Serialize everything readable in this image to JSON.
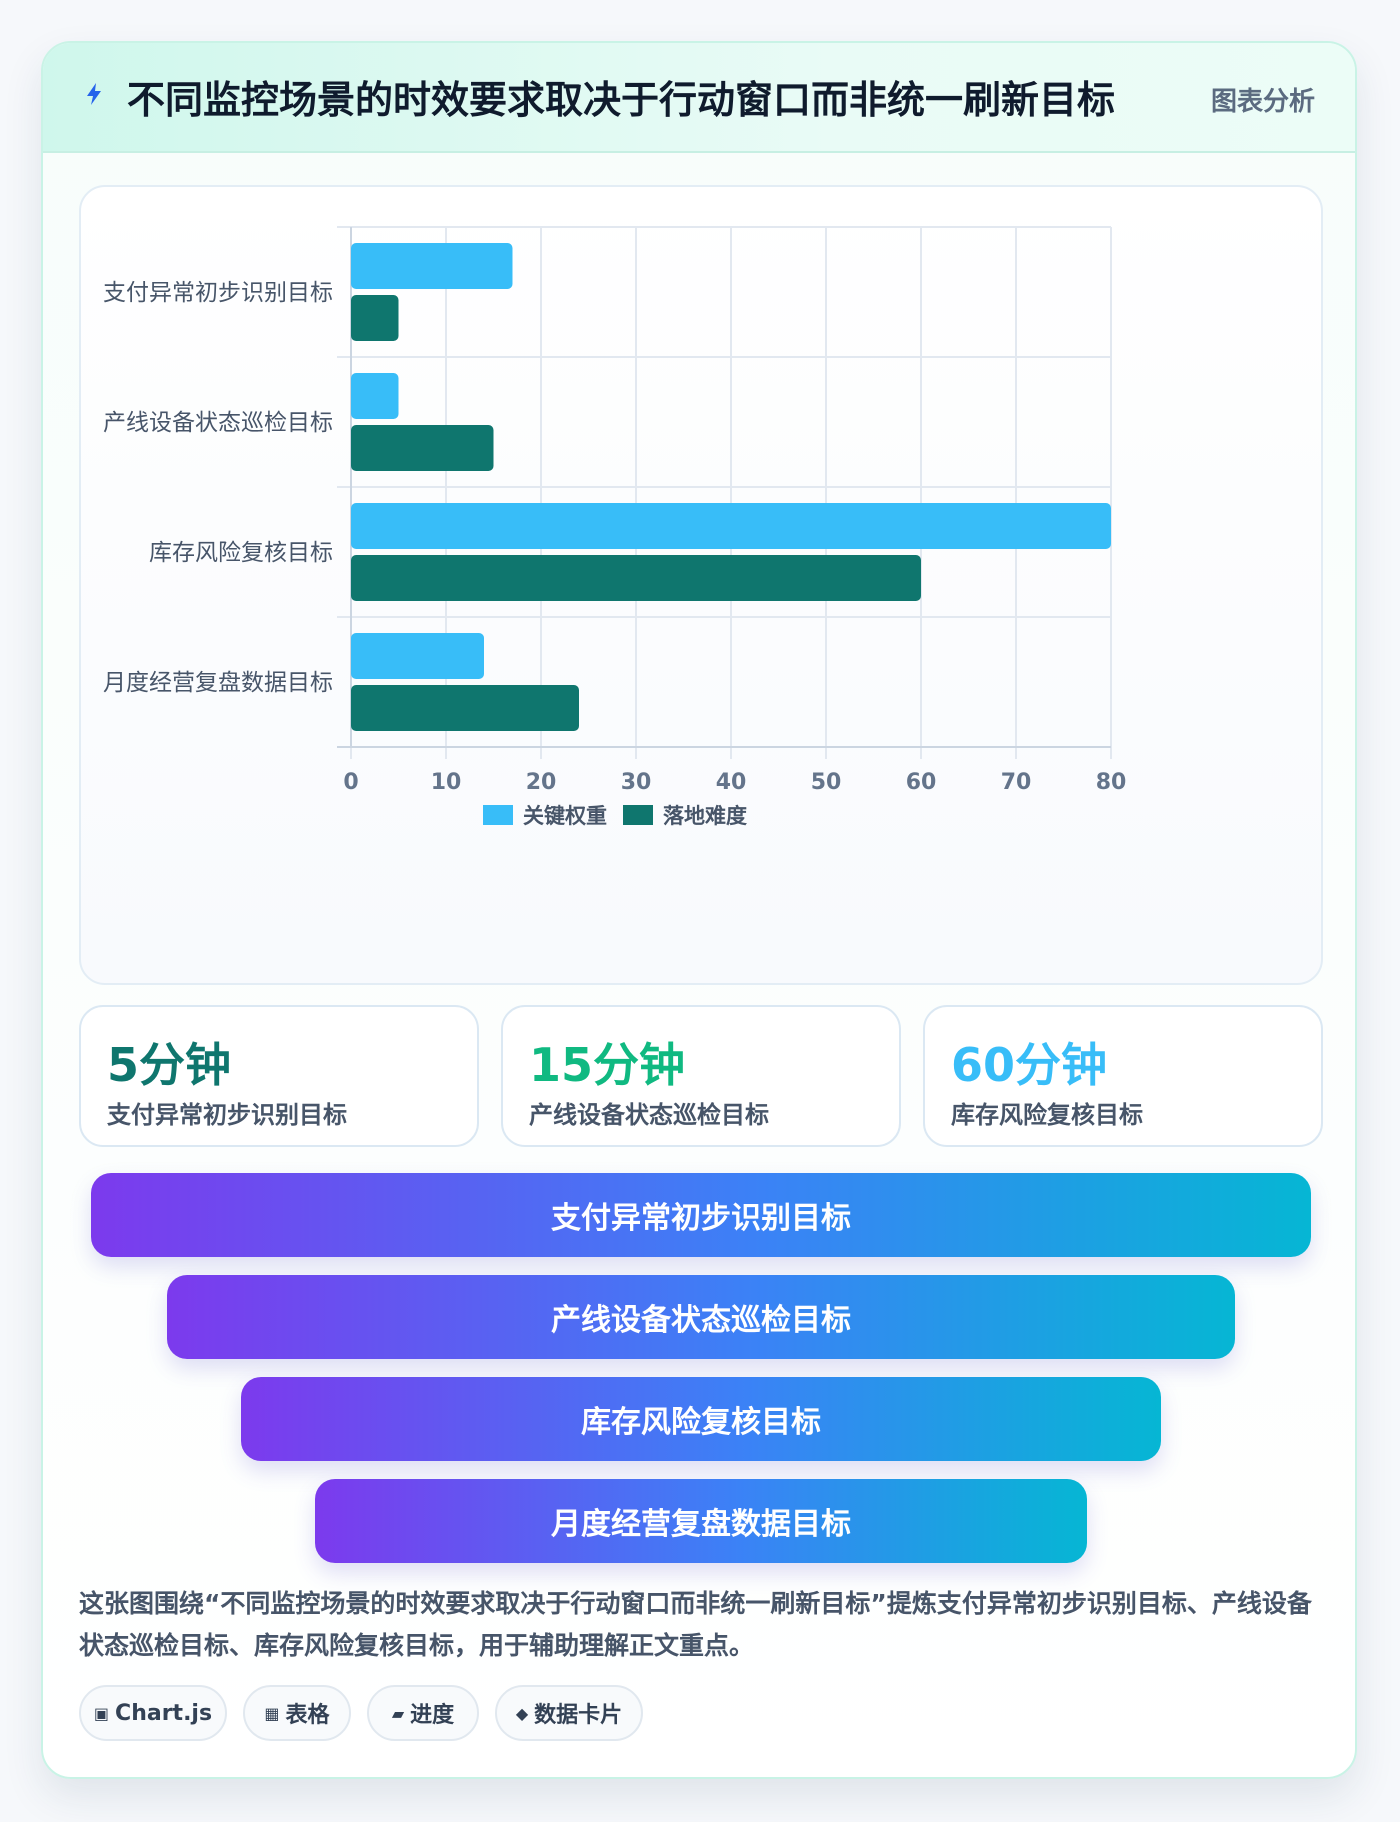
{
  "header": {
    "title": "不同监控场景的时效要求取决于行动窗口而非统一刷新目标",
    "tag": "图表分析",
    "icon": "bolt-icon"
  },
  "chart_data": {
    "type": "bar",
    "orientation": "horizontal",
    "categories": [
      "支付异常初步识别目标",
      "产线设备状态巡检目标",
      "库存风险复核目标",
      "月度经营复盘数据目标"
    ],
    "series": [
      {
        "name": "关键权重",
        "values": [
          17,
          5,
          80,
          14
        ],
        "color": "#38bdf8"
      },
      {
        "name": "落地难度",
        "values": [
          5,
          15,
          60,
          24
        ],
        "color": "#0f766e"
      }
    ],
    "xlim": [
      0,
      80
    ],
    "xticks": [
      "0",
      "10",
      "20",
      "30",
      "40",
      "50",
      "60",
      "70",
      "80"
    ],
    "grid": true,
    "legend_position": "bottom-center"
  },
  "stats": [
    {
      "value": "5分钟",
      "label": "支付异常初步识别目标",
      "color": "#0f766e"
    },
    {
      "value": "15分钟",
      "label": "产线设备状态巡检目标",
      "color": "#10b981"
    },
    {
      "value": "60分钟",
      "label": "库存风险复核目标",
      "color": "#38bdf8"
    }
  ],
  "funnel": [
    {
      "label": "支付异常初步识别目标"
    },
    {
      "label": "产线设备状态巡检目标"
    },
    {
      "label": "库存风险复核目标"
    },
    {
      "label": "月度经营复盘数据目标"
    }
  ],
  "summary": "这张图围绕“不同监控场景的时效要求取决于行动窗口而非统一刷新目标”提炼支付异常初步识别目标、产线设备状态巡检目标、库存风险复核目标，用于辅助理解正文重点。",
  "chips": [
    {
      "icon": "▣",
      "label": "Chart.js"
    },
    {
      "icon": "▦",
      "label": "表格"
    },
    {
      "icon": "▰",
      "label": "进度"
    },
    {
      "icon": "◆",
      "label": "数据卡片"
    }
  ]
}
